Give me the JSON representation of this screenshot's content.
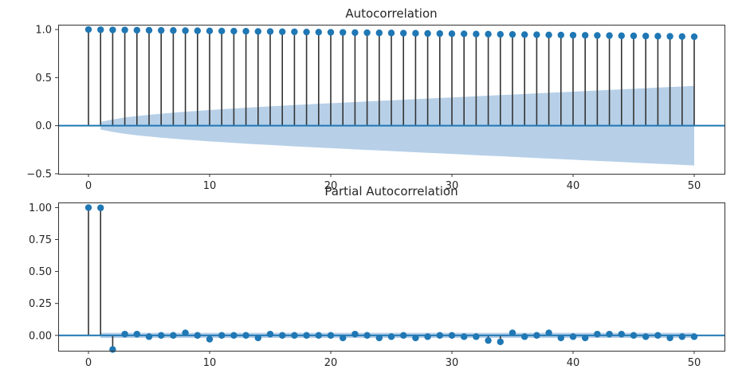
{
  "colors": {
    "marker": "#1f77b4",
    "stem": "#333333",
    "baseline": "#1f77b4",
    "confidence_band": "#b7d0e8",
    "axes_frame": "#333333"
  },
  "chart_data": [
    {
      "type": "stem",
      "title": "Autocorrelation",
      "xlabel": "",
      "ylabel": "",
      "xlim": [
        -2.5,
        52.5
      ],
      "ylim": [
        -0.5,
        1.05
      ],
      "x_ticks": [
        0,
        10,
        20,
        30,
        40,
        50
      ],
      "x_tick_labels": [
        "0",
        "10",
        "20",
        "30",
        "40",
        "50"
      ],
      "y_ticks": [
        -0.5,
        0.0,
        0.5,
        1.0
      ],
      "y_tick_labels": [
        "−0.5",
        "0.0",
        "0.5",
        "1.0"
      ],
      "grid": false,
      "lags": [
        0,
        1,
        2,
        3,
        4,
        5,
        6,
        7,
        8,
        9,
        10,
        11,
        12,
        13,
        14,
        15,
        16,
        17,
        18,
        19,
        20,
        21,
        22,
        23,
        24,
        25,
        26,
        27,
        28,
        29,
        30,
        31,
        32,
        33,
        34,
        35,
        36,
        37,
        38,
        39,
        40,
        41,
        42,
        43,
        44,
        45,
        46,
        47,
        48,
        49,
        50
      ],
      "values": [
        1.0,
        0.998,
        0.996,
        0.995,
        0.993,
        0.992,
        0.991,
        0.99,
        0.988,
        0.987,
        0.985,
        0.984,
        0.983,
        0.982,
        0.98,
        0.979,
        0.977,
        0.976,
        0.974,
        0.973,
        0.971,
        0.97,
        0.968,
        0.967,
        0.965,
        0.964,
        0.962,
        0.961,
        0.959,
        0.958,
        0.956,
        0.955,
        0.953,
        0.952,
        0.95,
        0.949,
        0.947,
        0.946,
        0.944,
        0.943,
        0.941,
        0.94,
        0.938,
        0.937,
        0.935,
        0.934,
        0.932,
        0.931,
        0.929,
        0.927,
        0.925
      ],
      "confidence_interval": {
        "lags": [
          1,
          2,
          3,
          4,
          5,
          6,
          7,
          8,
          9,
          10,
          11,
          12,
          13,
          14,
          15,
          16,
          17,
          18,
          19,
          20,
          21,
          22,
          23,
          24,
          25,
          26,
          27,
          28,
          29,
          30,
          31,
          32,
          33,
          34,
          35,
          36,
          37,
          38,
          39,
          40,
          41,
          42,
          43,
          44,
          45,
          46,
          47,
          48,
          49,
          50
        ],
        "half_width": [
          0.04,
          0.065,
          0.085,
          0.1,
          0.113,
          0.125,
          0.135,
          0.145,
          0.154,
          0.163,
          0.171,
          0.179,
          0.187,
          0.194,
          0.201,
          0.208,
          0.215,
          0.221,
          0.228,
          0.234,
          0.24,
          0.246,
          0.252,
          0.258,
          0.264,
          0.27,
          0.276,
          0.282,
          0.288,
          0.294,
          0.3,
          0.306,
          0.312,
          0.318,
          0.324,
          0.33,
          0.336,
          0.342,
          0.348,
          0.354,
          0.36,
          0.366,
          0.372,
          0.378,
          0.384,
          0.39,
          0.396,
          0.402,
          0.408,
          0.414
        ]
      }
    },
    {
      "type": "stem",
      "title": "Partial Autocorrelation",
      "xlabel": "",
      "ylabel": "",
      "xlim": [
        -2.5,
        52.5
      ],
      "ylim": [
        -0.12,
        1.04
      ],
      "x_ticks": [
        0,
        10,
        20,
        30,
        40,
        50
      ],
      "x_tick_labels": [
        "0",
        "10",
        "20",
        "30",
        "40",
        "50"
      ],
      "y_ticks": [
        0.0,
        0.25,
        0.5,
        0.75,
        1.0
      ],
      "y_tick_labels": [
        "0.00",
        "0.25",
        "0.50",
        "0.75",
        "1.00"
      ],
      "grid": false,
      "lags": [
        0,
        1,
        2,
        3,
        4,
        5,
        6,
        7,
        8,
        9,
        10,
        11,
        12,
        13,
        14,
        15,
        16,
        17,
        18,
        19,
        20,
        21,
        22,
        23,
        24,
        25,
        26,
        27,
        28,
        29,
        30,
        31,
        32,
        33,
        34,
        35,
        36,
        37,
        38,
        39,
        40,
        41,
        42,
        43,
        44,
        45,
        46,
        47,
        48,
        49,
        50
      ],
      "values": [
        1.0,
        0.998,
        -0.11,
        0.01,
        0.01,
        -0.01,
        0.0,
        0.0,
        0.02,
        0.0,
        -0.03,
        0.0,
        0.0,
        0.0,
        -0.02,
        0.01,
        0.0,
        0.0,
        0.0,
        0.0,
        0.0,
        -0.02,
        0.01,
        0.0,
        -0.02,
        -0.01,
        0.0,
        -0.02,
        -0.01,
        0.0,
        0.0,
        -0.01,
        -0.01,
        -0.04,
        -0.05,
        0.02,
        -0.01,
        0.0,
        0.02,
        -0.02,
        -0.01,
        -0.02,
        0.01,
        0.01,
        0.01,
        0.0,
        -0.01,
        0.0,
        -0.02,
        -0.01,
        -0.01
      ],
      "confidence_interval": {
        "lags_from": 1,
        "lags_to": 50,
        "half_width": 0.02
      }
    }
  ]
}
